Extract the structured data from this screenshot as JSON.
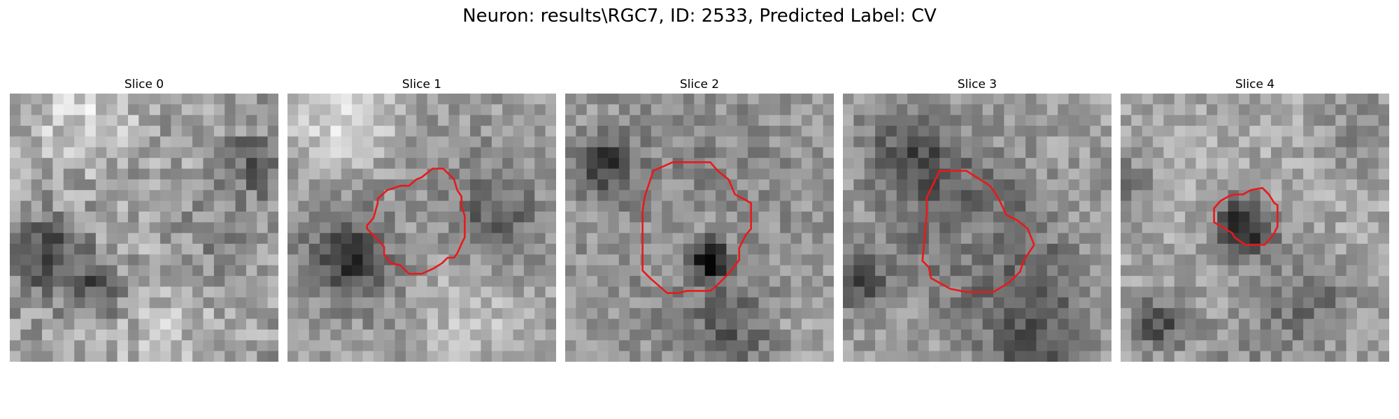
{
  "figure": {
    "title": "Neuron: results\\RGC7, ID: 2533, Predicted Label: CV"
  },
  "panels": [
    {
      "title": "Slice 0"
    },
    {
      "title": "Slice 1"
    },
    {
      "title": "Slice 2"
    },
    {
      "title": "Slice 3"
    },
    {
      "title": "Slice 4"
    }
  ],
  "colors": {
    "contour": "#e8191b",
    "image_colormap": "gray"
  }
}
